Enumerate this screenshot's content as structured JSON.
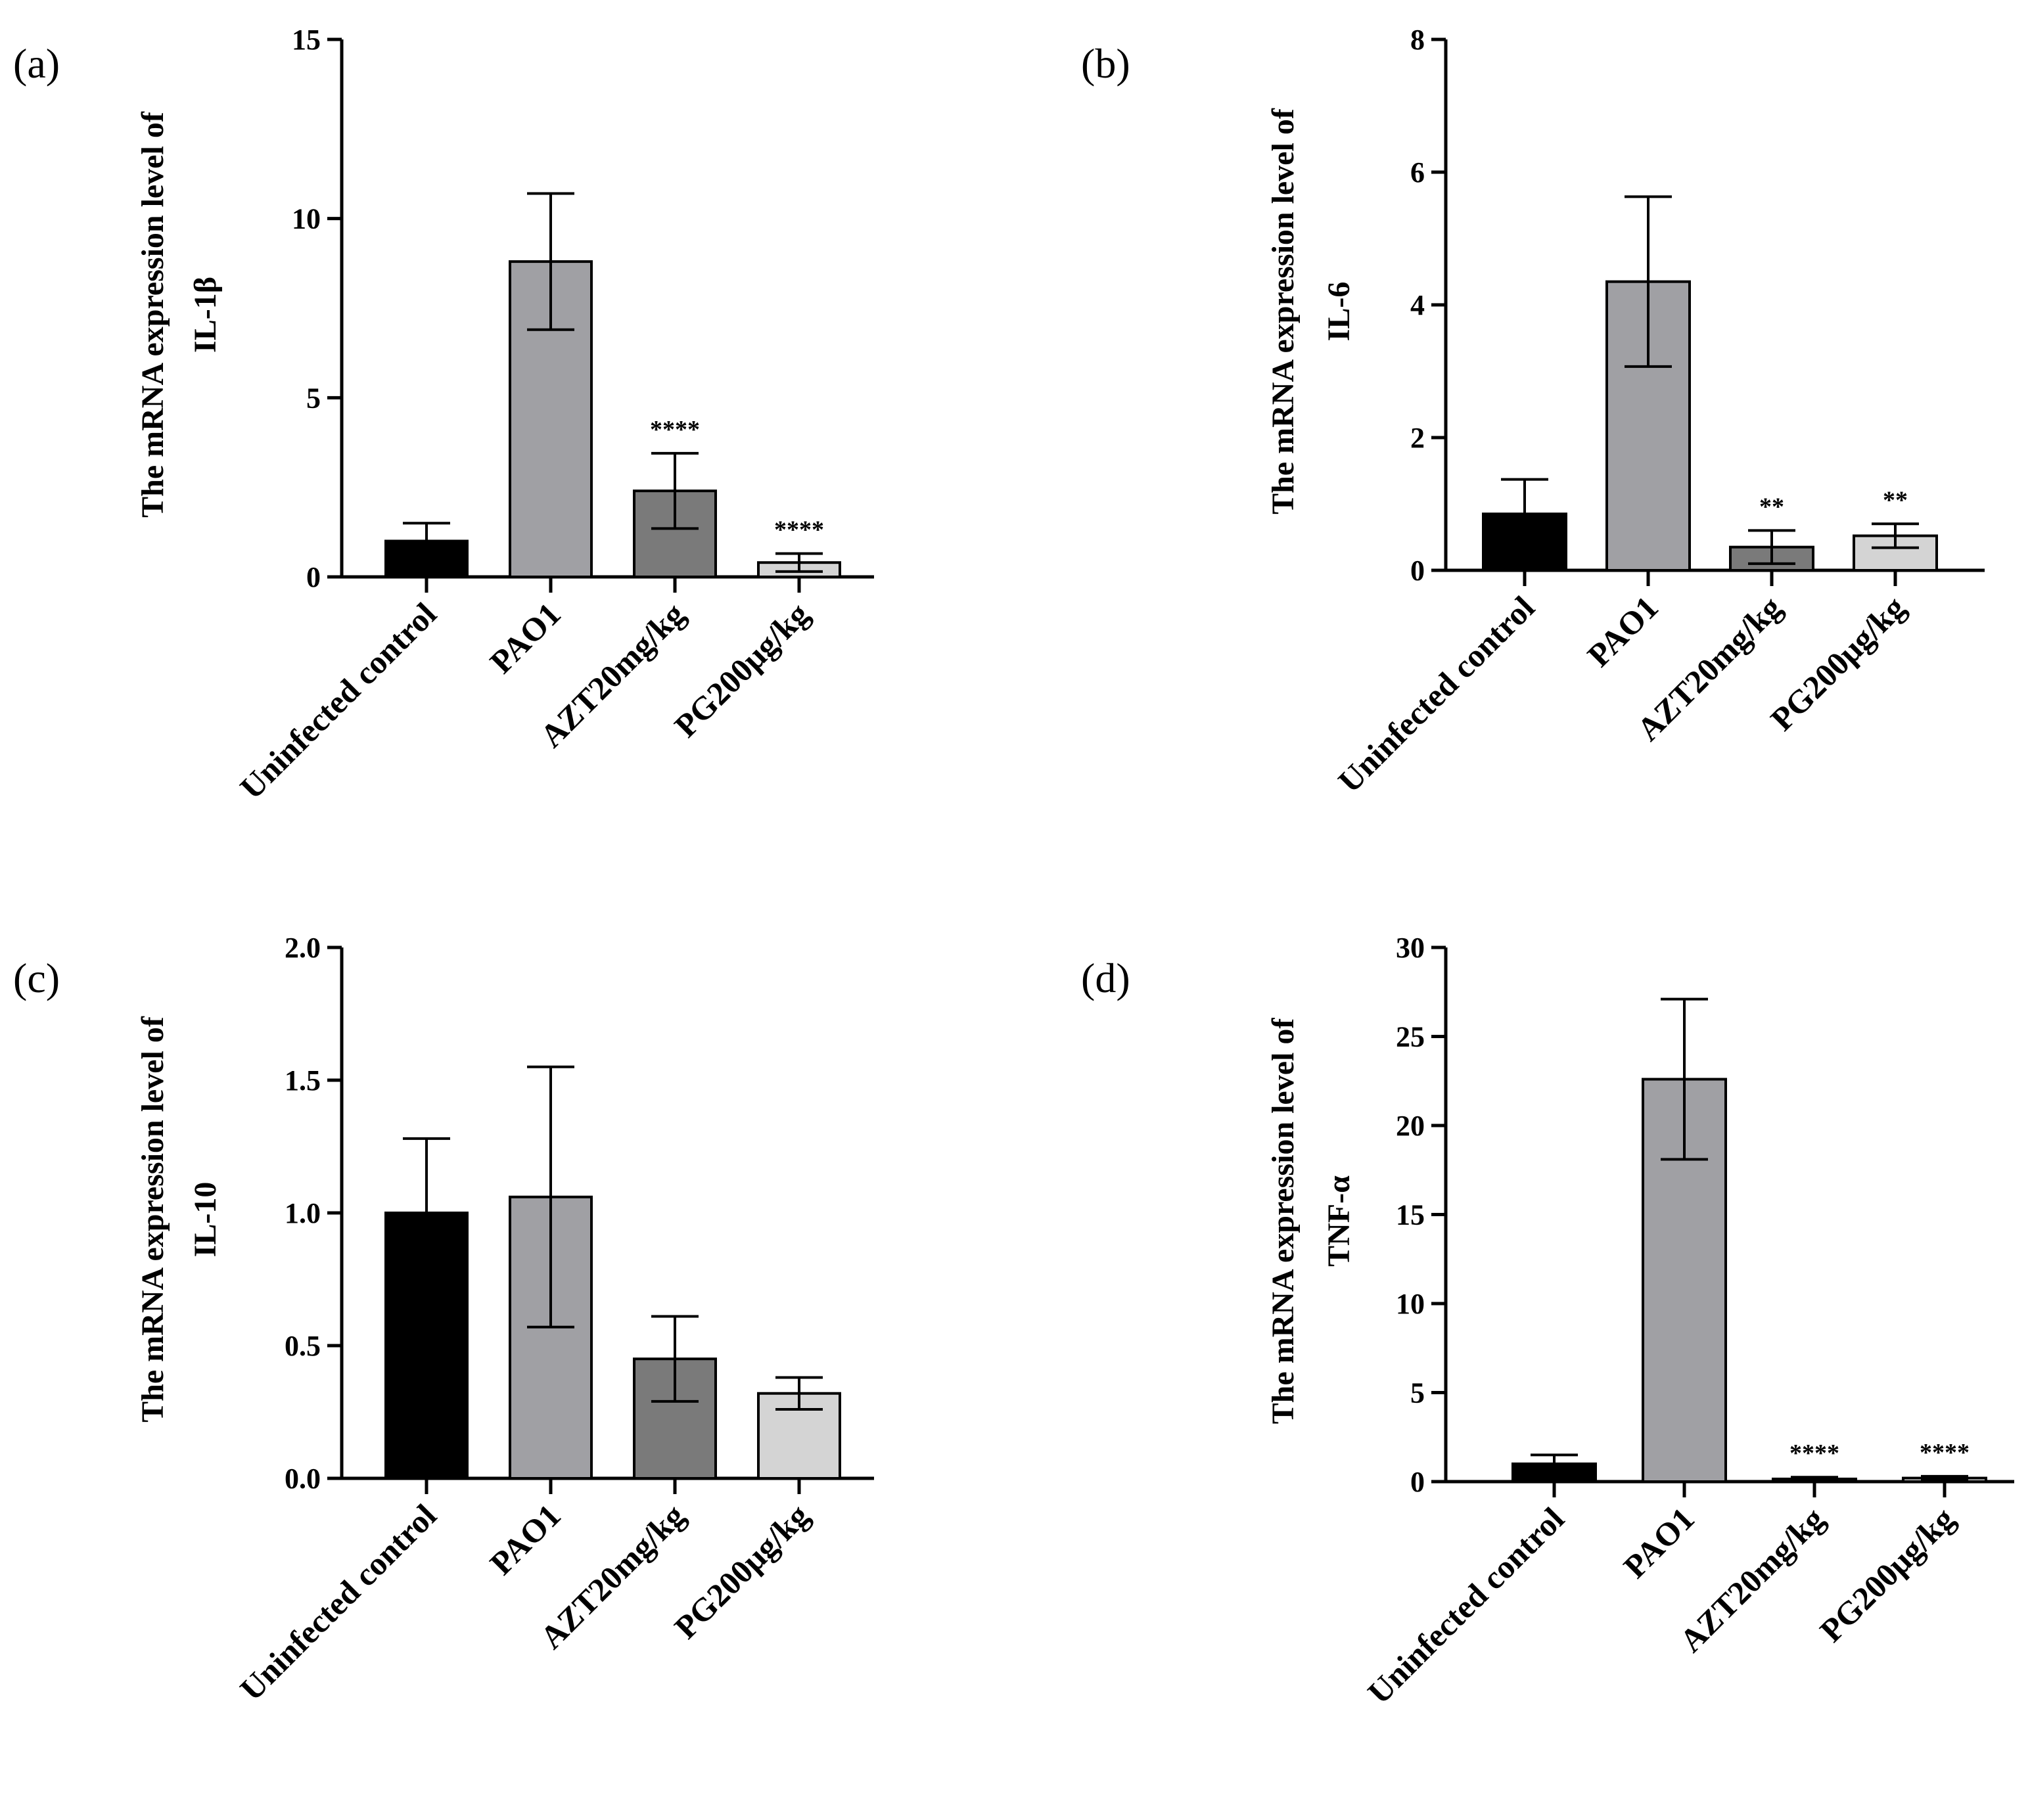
{
  "chart_data": [
    {
      "type": "bar",
      "panel": "(a)",
      "ylabel": [
        "The mRNA expression level of",
        "IL-1β"
      ],
      "ylim": [
        0,
        15
      ],
      "yticks": [
        0,
        5,
        10,
        15
      ],
      "categories": [
        "Uninfected control",
        "PAO1",
        "AZT20mg/kg",
        "PG200μg/kg"
      ],
      "values": [
        1.0,
        8.8,
        2.4,
        0.4
      ],
      "errors": [
        0.5,
        1.9,
        1.05,
        0.25
      ],
      "significance": [
        "",
        "",
        "****",
        "****"
      ]
    },
    {
      "type": "bar",
      "panel": "(b)",
      "ylabel": [
        "The mRNA expression level of",
        "IL-6"
      ],
      "ylim": [
        0,
        8
      ],
      "yticks": [
        0,
        2,
        4,
        6,
        8
      ],
      "categories": [
        "Uninfected control",
        "PAO1",
        "AZT20mg/kg",
        "PG200μg/kg"
      ],
      "values": [
        0.85,
        4.35,
        0.35,
        0.52
      ],
      "errors": [
        0.52,
        1.28,
        0.25,
        0.18
      ],
      "significance": [
        "",
        "",
        "**",
        "**"
      ]
    },
    {
      "type": "bar",
      "panel": "(c)",
      "ylabel": [
        "The mRNA expression level of",
        "IL-10"
      ],
      "ylim": [
        0,
        2
      ],
      "yticks": [
        "0.0",
        "0.5",
        "1.0",
        "1.5",
        "2.0"
      ],
      "categories": [
        "Uninfected control",
        "PAO1",
        "AZT20mg/kg",
        "PG200μg/kg"
      ],
      "values": [
        1.0,
        1.06,
        0.45,
        0.32
      ],
      "errors": [
        0.28,
        0.49,
        0.16,
        0.06
      ],
      "significance": [
        "",
        "",
        "",
        ""
      ]
    },
    {
      "type": "bar",
      "panel": "(d)",
      "ylabel": [
        "The mRNA expression level of",
        "TNF-α"
      ],
      "ylim": [
        0,
        30
      ],
      "yticks": [
        0,
        5,
        10,
        15,
        20,
        25,
        30
      ],
      "categories": [
        "Uninfected control",
        "PAO1",
        "AZT20mg/kg",
        "PG200μg/kg"
      ],
      "values": [
        1.0,
        22.6,
        0.15,
        0.2
      ],
      "errors": [
        0.5,
        4.5,
        0.1,
        0.1
      ],
      "significance": [
        "",
        "",
        "****",
        "****"
      ]
    }
  ],
  "bar_colors": [
    "#000000",
    "#a0a0a4",
    "#7a7a7a",
    "#d4d4d4"
  ]
}
